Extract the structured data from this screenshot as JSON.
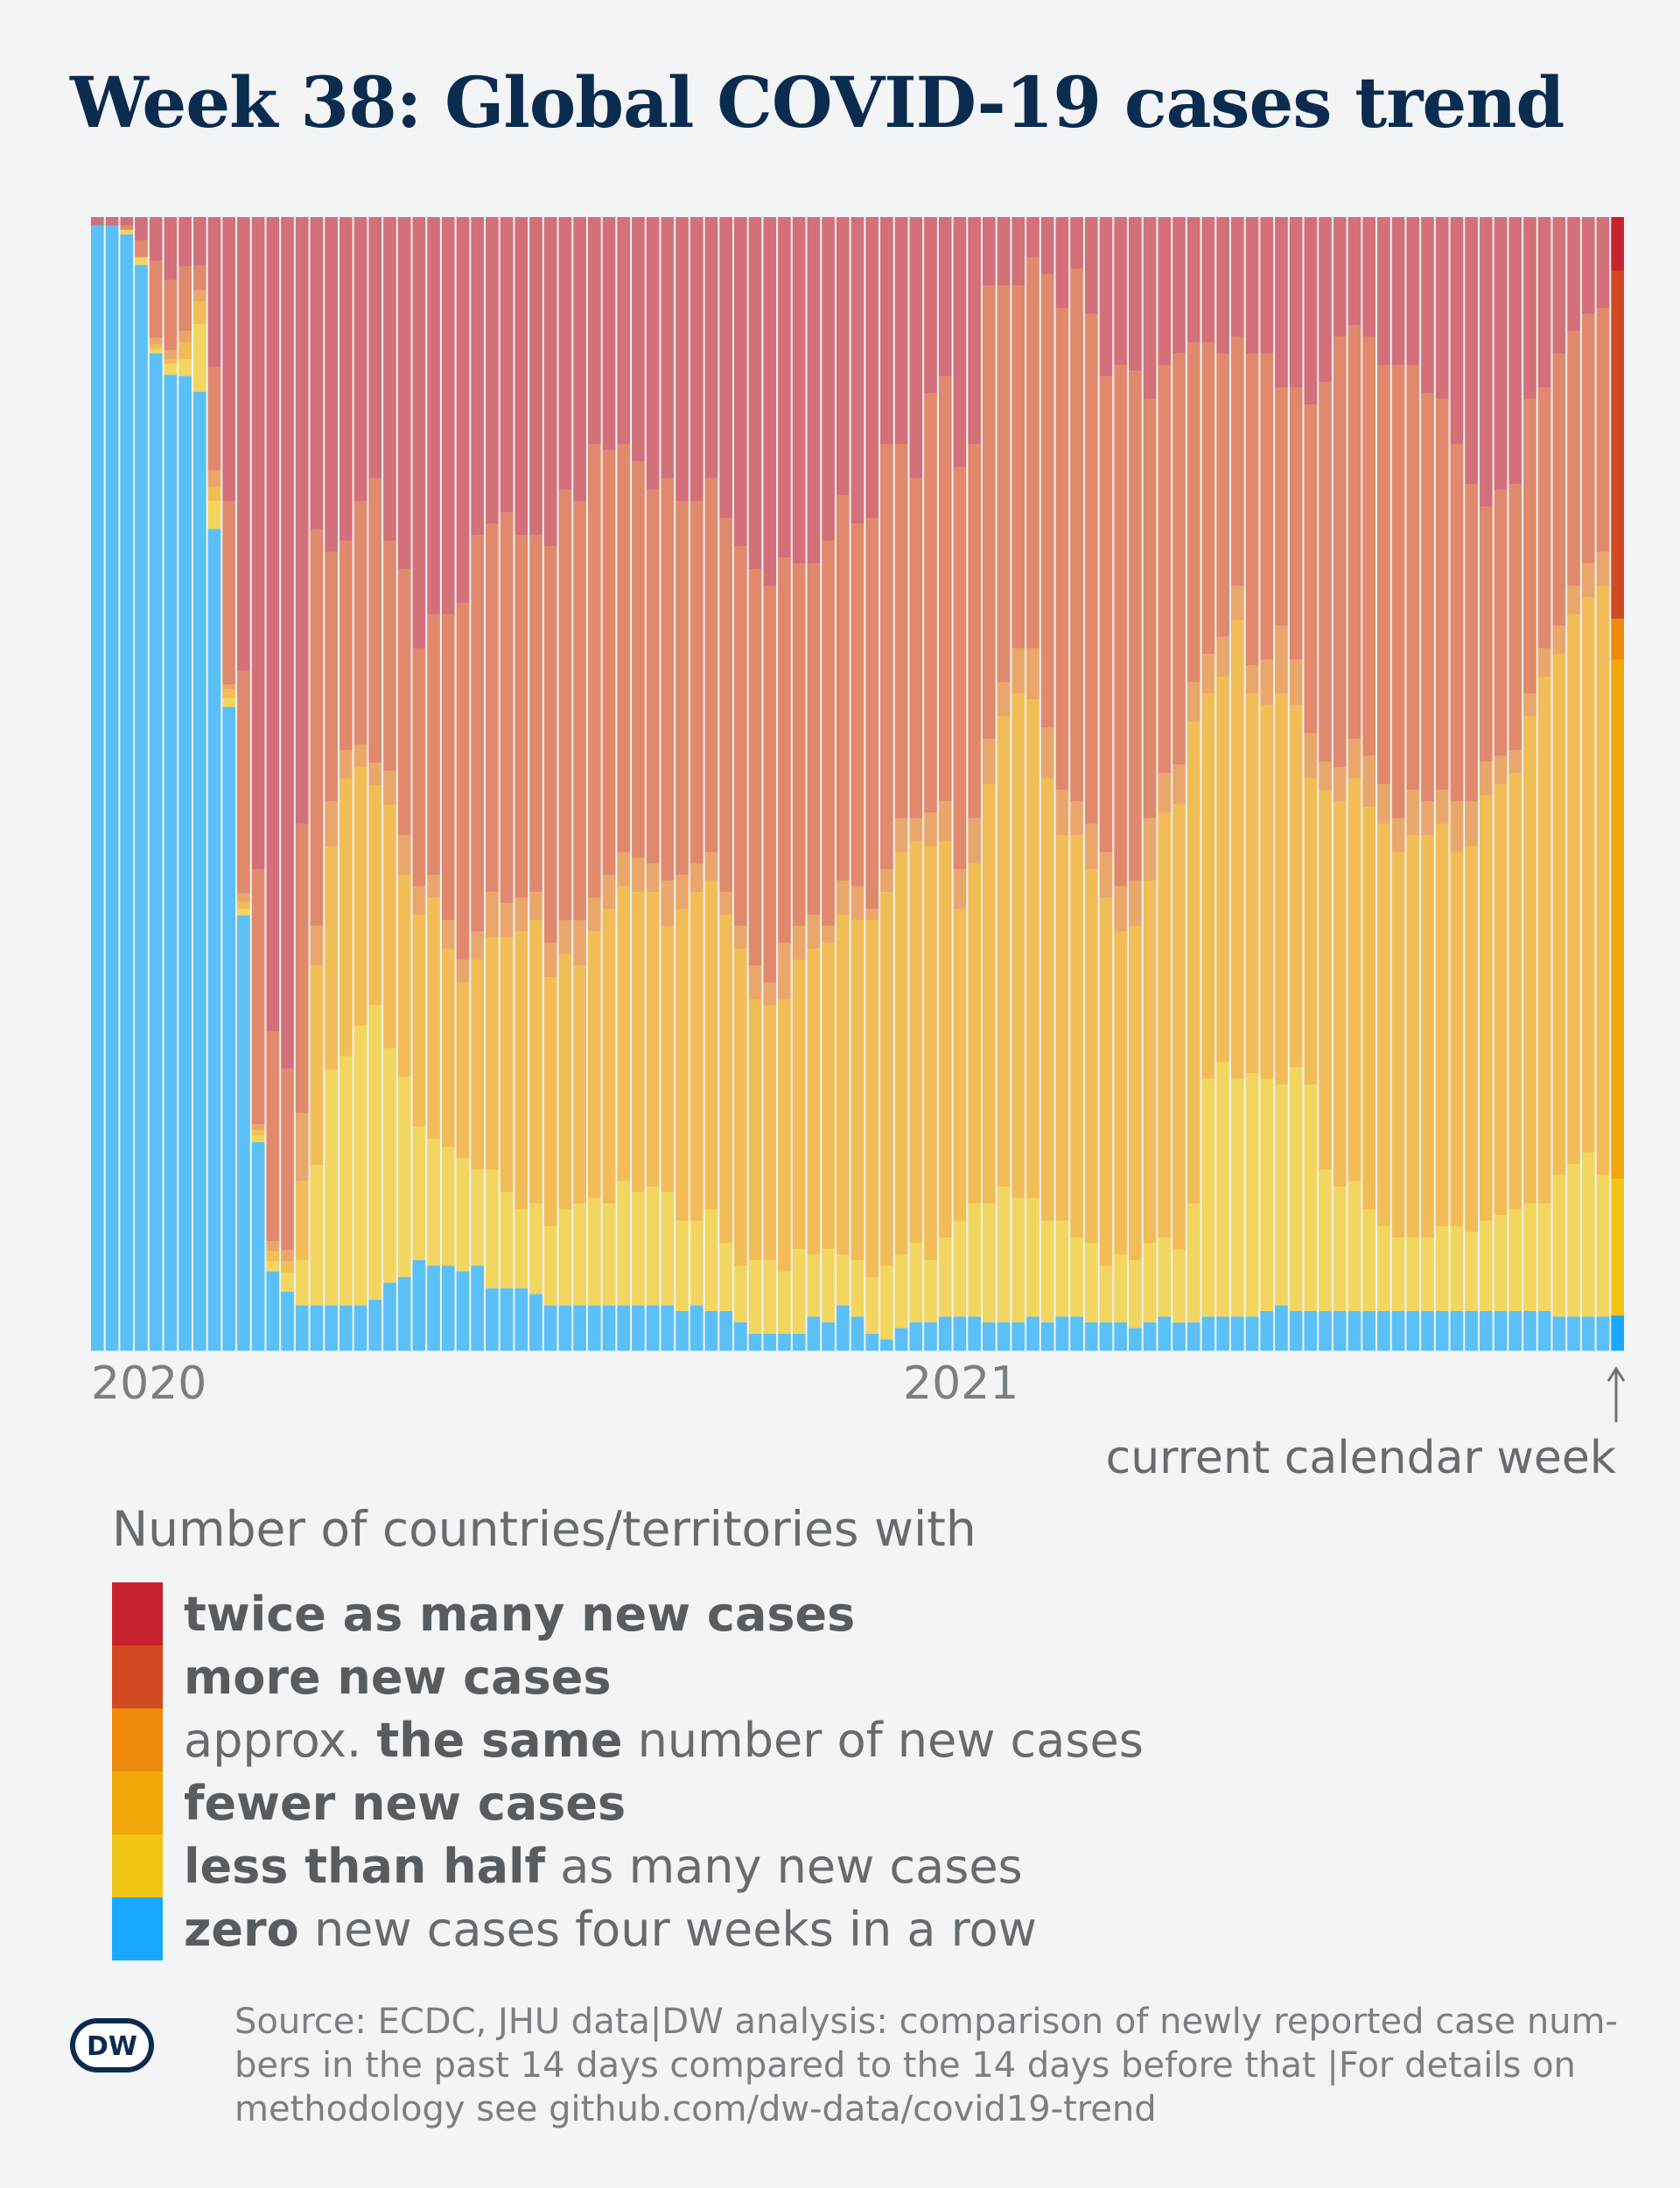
{
  "title": "Week 38: Global COVID-19 cases trend",
  "annotation": "current calendar week",
  "legend": {
    "heading": "Number of countries/territories with",
    "items": [
      {
        "key": "twice",
        "color": "#c7232e",
        "parts": [
          {
            "text": "twice as many new cases",
            "bold": true
          }
        ]
      },
      {
        "key": "more",
        "color": "#d24a22",
        "parts": [
          {
            "text": "more new cases",
            "bold": true
          }
        ]
      },
      {
        "key": "same",
        "color": "#ed8a0c",
        "parts": [
          {
            "text": "approx. ",
            "bold": false
          },
          {
            "text": "the same",
            "bold": true
          },
          {
            "text": " number of new cases",
            "bold": false
          }
        ]
      },
      {
        "key": "fewer",
        "color": "#f0a70a",
        "parts": [
          {
            "text": "fewer new cases",
            "bold": true
          }
        ]
      },
      {
        "key": "half",
        "color": "#f0c514",
        "parts": [
          {
            "text": "less than half",
            "bold": true
          },
          {
            "text": " as many new cases",
            "bold": false
          }
        ]
      },
      {
        "key": "zero",
        "color": "#1aa7ff",
        "parts": [
          {
            "text": "zero",
            "bold": true
          },
          {
            "text": " new cases four weeks in a row",
            "bold": false
          }
        ]
      }
    ]
  },
  "source": {
    "lines": [
      "Source: ECDC, JHU data|DW analysis: comparison of newly reported case num-",
      "bers in the past 14 days compared to the 14 days before that |For details on",
      "methodology see github.com/dw-data/covid19-trend"
    ]
  },
  "logo_text": "DW",
  "chart_data": {
    "type": "bar",
    "stacked": true,
    "normalized": true,
    "x_labels": [
      "2020",
      "2021"
    ],
    "series_order": [
      "zero",
      "half",
      "fewer",
      "same",
      "more",
      "twice"
    ],
    "historic_colors": {
      "zero": "#5bc0f8",
      "half": "#f2d660",
      "fewer": "#f2bd56",
      "same": "#eaa76c",
      "more": "#e1896c",
      "twice": "#d3707a"
    },
    "current_colors": {
      "zero": "#1aa7ff",
      "half": "#f0c514",
      "fewer": "#f0a70a",
      "same": "#ed8a0c",
      "more": "#d24a22",
      "twice": "#c7232e"
    },
    "weeks": [
      {
        "zero": 0.993,
        "half": 0,
        "fewer": 0,
        "same": 0,
        "more": 0,
        "twice": 0.007
      },
      {
        "zero": 0.993,
        "half": 0,
        "fewer": 0,
        "same": 0,
        "more": 0,
        "twice": 0.007
      },
      {
        "zero": 0.985,
        "half": 0.004,
        "fewer": 0,
        "same": 0,
        "more": 0.004,
        "twice": 0.007
      },
      {
        "zero": 0.958,
        "half": 0.007,
        "fewer": 0,
        "same": 0,
        "more": 0.015,
        "twice": 0.02
      },
      {
        "zero": 0.88,
        "half": 0.004,
        "fewer": 0.004,
        "same": 0.006,
        "more": 0.068,
        "twice": 0.038
      },
      {
        "zero": 0.861,
        "half": 0.01,
        "fewer": 0.004,
        "same": 0.008,
        "more": 0.062,
        "twice": 0.055
      },
      {
        "zero": 0.86,
        "half": 0.015,
        "fewer": 0.015,
        "same": 0.01,
        "more": 0.057,
        "twice": 0.043
      },
      {
        "zero": 0.846,
        "half": 0.06,
        "fewer": 0.02,
        "same": 0.01,
        "more": 0.022,
        "twice": 0.042
      },
      {
        "zero": 0.725,
        "half": 0.025,
        "fewer": 0.012,
        "same": 0.015,
        "more": 0.091,
        "twice": 0.132
      },
      {
        "zero": 0.568,
        "half": 0.008,
        "fewer": 0.008,
        "same": 0.004,
        "more": 0.162,
        "twice": 0.25
      },
      {
        "zero": 0.384,
        "half": 0.006,
        "fewer": 0.006,
        "same": 0.008,
        "more": 0.196,
        "twice": 0.4
      },
      {
        "zero": 0.184,
        "half": 0.006,
        "fewer": 0.005,
        "same": 0.005,
        "more": 0.225,
        "twice": 0.575
      },
      {
        "zero": 0.07,
        "half": 0.009,
        "fewer": 0.009,
        "same": 0.009,
        "more": 0.185,
        "twice": 0.718
      },
      {
        "zero": 0.052,
        "half": 0.017,
        "fewer": 0.01,
        "same": 0.01,
        "more": 0.16,
        "twice": 0.75
      },
      {
        "zero": 0.04,
        "half": 0.04,
        "fewer": 0.07,
        "same": 0.06,
        "more": 0.255,
        "twice": 0.535
      },
      {
        "zero": 0.04,
        "half": 0.124,
        "fewer": 0.176,
        "same": 0.035,
        "more": 0.35,
        "twice": 0.275
      },
      {
        "zero": 0.04,
        "half": 0.208,
        "fewer": 0.197,
        "same": 0.04,
        "more": 0.22,
        "twice": 0.295
      },
      {
        "zero": 0.04,
        "half": 0.22,
        "fewer": 0.245,
        "same": 0.025,
        "more": 0.185,
        "twice": 0.285
      },
      {
        "zero": 0.04,
        "half": 0.247,
        "fewer": 0.228,
        "same": 0.02,
        "more": 0.215,
        "twice": 0.25
      },
      {
        "zero": 0.045,
        "half": 0.26,
        "fewer": 0.194,
        "same": 0.02,
        "more": 0.251,
        "twice": 0.23
      },
      {
        "zero": 0.06,
        "half": 0.207,
        "fewer": 0.215,
        "same": 0.03,
        "more": 0.203,
        "twice": 0.285
      },
      {
        "zero": 0.065,
        "half": 0.177,
        "fewer": 0.178,
        "same": 0.035,
        "more": 0.235,
        "twice": 0.31
      },
      {
        "zero": 0.08,
        "half": 0.118,
        "fewer": 0.187,
        "same": 0.025,
        "more": 0.21,
        "twice": 0.38
      },
      {
        "zero": 0.075,
        "half": 0.112,
        "fewer": 0.213,
        "same": 0.02,
        "more": 0.23,
        "twice": 0.35
      },
      {
        "zero": 0.075,
        "half": 0.105,
        "fewer": 0.175,
        "same": 0.025,
        "more": 0.27,
        "twice": 0.35
      },
      {
        "zero": 0.07,
        "half": 0.1,
        "fewer": 0.155,
        "same": 0.02,
        "more": 0.315,
        "twice": 0.34
      },
      {
        "zero": 0.075,
        "half": 0.085,
        "fewer": 0.185,
        "same": 0.025,
        "more": 0.35,
        "twice": 0.28
      },
      {
        "zero": 0.055,
        "half": 0.105,
        "fewer": 0.205,
        "same": 0.04,
        "more": 0.325,
        "twice": 0.27
      },
      {
        "zero": 0.055,
        "half": 0.085,
        "fewer": 0.225,
        "same": 0.03,
        "more": 0.345,
        "twice": 0.26
      },
      {
        "zero": 0.055,
        "half": 0.07,
        "fewer": 0.245,
        "same": 0.03,
        "more": 0.32,
        "twice": 0.28
      },
      {
        "zero": 0.05,
        "half": 0.08,
        "fewer": 0.25,
        "same": 0.025,
        "more": 0.315,
        "twice": 0.28
      },
      {
        "zero": 0.04,
        "half": 0.07,
        "fewer": 0.22,
        "same": 0.03,
        "more": 0.35,
        "twice": 0.29
      },
      {
        "zero": 0.04,
        "half": 0.085,
        "fewer": 0.225,
        "same": 0.03,
        "more": 0.38,
        "twice": 0.24
      },
      {
        "zero": 0.04,
        "half": 0.09,
        "fewer": 0.21,
        "same": 0.04,
        "more": 0.37,
        "twice": 0.25
      },
      {
        "zero": 0.04,
        "half": 0.095,
        "fewer": 0.235,
        "same": 0.03,
        "more": 0.4,
        "twice": 0.2
      },
      {
        "zero": 0.04,
        "half": 0.09,
        "fewer": 0.26,
        "same": 0.03,
        "more": 0.375,
        "twice": 0.205
      },
      {
        "zero": 0.04,
        "half": 0.11,
        "fewer": 0.26,
        "same": 0.03,
        "more": 0.36,
        "twice": 0.2
      },
      {
        "zero": 0.04,
        "half": 0.1,
        "fewer": 0.265,
        "same": 0.03,
        "more": 0.35,
        "twice": 0.215
      },
      {
        "zero": 0.04,
        "half": 0.105,
        "fewer": 0.26,
        "same": 0.025,
        "more": 0.33,
        "twice": 0.24
      },
      {
        "zero": 0.04,
        "half": 0.1,
        "fewer": 0.235,
        "same": 0.04,
        "more": 0.355,
        "twice": 0.23
      },
      {
        "zero": 0.035,
        "half": 0.08,
        "fewer": 0.275,
        "same": 0.03,
        "more": 0.33,
        "twice": 0.25
      },
      {
        "zero": 0.04,
        "half": 0.075,
        "fewer": 0.29,
        "same": 0.025,
        "more": 0.32,
        "twice": 0.25
      },
      {
        "zero": 0.035,
        "half": 0.09,
        "fewer": 0.29,
        "same": 0.025,
        "more": 0.33,
        "twice": 0.23
      },
      {
        "zero": 0.035,
        "half": 0.06,
        "fewer": 0.29,
        "same": 0.02,
        "more": 0.33,
        "twice": 0.265
      },
      {
        "zero": 0.025,
        "half": 0.05,
        "fewer": 0.28,
        "same": 0.02,
        "more": 0.335,
        "twice": 0.29
      },
      {
        "zero": 0.015,
        "half": 0.065,
        "fewer": 0.23,
        "same": 0.03,
        "more": 0.35,
        "twice": 0.31
      },
      {
        "zero": 0.015,
        "half": 0.065,
        "fewer": 0.225,
        "same": 0.02,
        "more": 0.35,
        "twice": 0.325
      },
      {
        "zero": 0.015,
        "half": 0.055,
        "fewer": 0.24,
        "same": 0.05,
        "more": 0.34,
        "twice": 0.3
      },
      {
        "zero": 0.015,
        "half": 0.075,
        "fewer": 0.255,
        "same": 0.03,
        "more": 0.32,
        "twice": 0.305
      },
      {
        "zero": 0.03,
        "half": 0.055,
        "fewer": 0.27,
        "same": 0.03,
        "more": 0.31,
        "twice": 0.305
      },
      {
        "zero": 0.025,
        "half": 0.065,
        "fewer": 0.27,
        "same": 0.015,
        "more": 0.34,
        "twice": 0.285
      },
      {
        "zero": 0.04,
        "half": 0.045,
        "fewer": 0.3,
        "same": 0.03,
        "more": 0.34,
        "twice": 0.245
      },
      {
        "zero": 0.03,
        "half": 0.05,
        "fewer": 0.3,
        "same": 0.03,
        "more": 0.32,
        "twice": 0.27
      },
      {
        "zero": 0.015,
        "half": 0.05,
        "fewer": 0.315,
        "same": 0.01,
        "more": 0.345,
        "twice": 0.265
      },
      {
        "zero": 0.01,
        "half": 0.065,
        "fewer": 0.33,
        "same": 0.02,
        "more": 0.375,
        "twice": 0.2
      },
      {
        "zero": 0.02,
        "half": 0.065,
        "fewer": 0.355,
        "same": 0.03,
        "more": 0.33,
        "twice": 0.2
      },
      {
        "zero": 0.025,
        "half": 0.07,
        "fewer": 0.355,
        "same": 0.02,
        "more": 0.3,
        "twice": 0.23
      },
      {
        "zero": 0.025,
        "half": 0.055,
        "fewer": 0.365,
        "same": 0.03,
        "more": 0.37,
        "twice": 0.155
      },
      {
        "zero": 0.03,
        "half": 0.07,
        "fewer": 0.35,
        "same": 0.035,
        "more": 0.375,
        "twice": 0.14
      },
      {
        "zero": 0.03,
        "half": 0.085,
        "fewer": 0.275,
        "same": 0.035,
        "more": 0.355,
        "twice": 0.22
      },
      {
        "zero": 0.03,
        "half": 0.1,
        "fewer": 0.3,
        "same": 0.04,
        "more": 0.33,
        "twice": 0.2
      },
      {
        "zero": 0.025,
        "half": 0.105,
        "fewer": 0.37,
        "same": 0.04,
        "more": 0.4,
        "twice": 0.06
      },
      {
        "zero": 0.025,
        "half": 0.12,
        "fewer": 0.415,
        "same": 0.03,
        "more": 0.35,
        "twice": 0.06
      },
      {
        "zero": 0.025,
        "half": 0.11,
        "fewer": 0.445,
        "same": 0.04,
        "more": 0.32,
        "twice": 0.06
      },
      {
        "zero": 0.03,
        "half": 0.105,
        "fewer": 0.44,
        "same": 0.045,
        "more": 0.345,
        "twice": 0.035
      },
      {
        "zero": 0.025,
        "half": 0.09,
        "fewer": 0.39,
        "same": 0.045,
        "more": 0.4,
        "twice": 0.05
      },
      {
        "zero": 0.03,
        "half": 0.085,
        "fewer": 0.34,
        "same": 0.04,
        "more": 0.425,
        "twice": 0.08
      },
      {
        "zero": 0.03,
        "half": 0.07,
        "fewer": 0.355,
        "same": 0.03,
        "more": 0.47,
        "twice": 0.045
      },
      {
        "zero": 0.025,
        "half": 0.07,
        "fewer": 0.33,
        "same": 0.04,
        "more": 0.45,
        "twice": 0.085
      },
      {
        "zero": 0.025,
        "half": 0.05,
        "fewer": 0.325,
        "same": 0.04,
        "more": 0.42,
        "twice": 0.14
      },
      {
        "zero": 0.025,
        "half": 0.06,
        "fewer": 0.285,
        "same": 0.04,
        "more": 0.46,
        "twice": 0.13
      },
      {
        "zero": 0.02,
        "half": 0.06,
        "fewer": 0.295,
        "same": 0.04,
        "more": 0.45,
        "twice": 0.135
      },
      {
        "zero": 0.025,
        "half": 0.07,
        "fewer": 0.32,
        "same": 0.055,
        "more": 0.37,
        "twice": 0.16
      },
      {
        "zero": 0.03,
        "half": 0.07,
        "fewer": 0.375,
        "same": 0.035,
        "more": 0.36,
        "twice": 0.13
      },
      {
        "zero": 0.025,
        "half": 0.065,
        "fewer": 0.395,
        "same": 0.035,
        "more": 0.365,
        "twice": 0.12
      },
      {
        "zero": 0.025,
        "half": 0.105,
        "fewer": 0.425,
        "same": 0.035,
        "more": 0.3,
        "twice": 0.11
      },
      {
        "zero": 0.03,
        "half": 0.21,
        "fewer": 0.34,
        "same": 0.035,
        "more": 0.275,
        "twice": 0.11
      },
      {
        "zero": 0.03,
        "half": 0.225,
        "fewer": 0.34,
        "same": 0.035,
        "more": 0.25,
        "twice": 0.12
      },
      {
        "zero": 0.03,
        "half": 0.21,
        "fewer": 0.405,
        "same": 0.03,
        "more": 0.22,
        "twice": 0.105
      },
      {
        "zero": 0.03,
        "half": 0.215,
        "fewer": 0.335,
        "same": 0.025,
        "more": 0.275,
        "twice": 0.12
      },
      {
        "zero": 0.035,
        "half": 0.205,
        "fewer": 0.33,
        "same": 0.04,
        "more": 0.27,
        "twice": 0.12
      },
      {
        "zero": 0.04,
        "half": 0.195,
        "fewer": 0.345,
        "same": 0.06,
        "more": 0.21,
        "twice": 0.15
      },
      {
        "zero": 0.035,
        "half": 0.215,
        "fewer": 0.32,
        "same": 0.04,
        "more": 0.24,
        "twice": 0.15
      },
      {
        "zero": 0.035,
        "half": 0.2,
        "fewer": 0.27,
        "same": 0.04,
        "more": 0.29,
        "twice": 0.165
      },
      {
        "zero": 0.035,
        "half": 0.125,
        "fewer": 0.335,
        "same": 0.025,
        "more": 0.335,
        "twice": 0.145
      },
      {
        "zero": 0.035,
        "half": 0.11,
        "fewer": 0.34,
        "same": 0.03,
        "more": 0.38,
        "twice": 0.105
      },
      {
        "zero": 0.035,
        "half": 0.115,
        "fewer": 0.355,
        "same": 0.035,
        "more": 0.365,
        "twice": 0.095
      },
      {
        "zero": 0.035,
        "half": 0.09,
        "fewer": 0.355,
        "same": 0.045,
        "more": 0.37,
        "twice": 0.105
      },
      {
        "zero": 0.035,
        "half": 0.075,
        "fewer": 0.355,
        "same": 0.035,
        "more": 0.37,
        "twice": 0.13
      },
      {
        "zero": 0.035,
        "half": 0.065,
        "fewer": 0.34,
        "same": 0.03,
        "more": 0.4,
        "twice": 0.13
      },
      {
        "zero": 0.035,
        "half": 0.065,
        "fewer": 0.355,
        "same": 0.04,
        "more": 0.375,
        "twice": 0.13
      },
      {
        "zero": 0.035,
        "half": 0.065,
        "fewer": 0.355,
        "same": 0.03,
        "more": 0.36,
        "twice": 0.155
      },
      {
        "zero": 0.035,
        "half": 0.075,
        "fewer": 0.355,
        "same": 0.03,
        "more": 0.345,
        "twice": 0.16
      },
      {
        "zero": 0.035,
        "half": 0.075,
        "fewer": 0.33,
        "same": 0.045,
        "more": 0.315,
        "twice": 0.2
      },
      {
        "zero": 0.035,
        "half": 0.07,
        "fewer": 0.34,
        "same": 0.04,
        "more": 0.28,
        "twice": 0.235
      },
      {
        "zero": 0.035,
        "half": 0.08,
        "fewer": 0.375,
        "same": 0.03,
        "more": 0.225,
        "twice": 0.255
      },
      {
        "zero": 0.035,
        "half": 0.085,
        "fewer": 0.38,
        "same": 0.025,
        "more": 0.235,
        "twice": 0.24
      },
      {
        "zero": 0.035,
        "half": 0.09,
        "fewer": 0.385,
        "same": 0.02,
        "more": 0.235,
        "twice": 0.235
      },
      {
        "zero": 0.035,
        "half": 0.095,
        "fewer": 0.43,
        "same": 0.02,
        "more": 0.26,
        "twice": 0.16
      },
      {
        "zero": 0.035,
        "half": 0.095,
        "fewer": 0.465,
        "same": 0.025,
        "more": 0.23,
        "twice": 0.15
      },
      {
        "zero": 0.03,
        "half": 0.125,
        "fewer": 0.46,
        "same": 0.025,
        "more": 0.24,
        "twice": 0.12
      },
      {
        "zero": 0.03,
        "half": 0.135,
        "fewer": 0.485,
        "same": 0.025,
        "more": 0.225,
        "twice": 0.1
      },
      {
        "zero": 0.03,
        "half": 0.145,
        "fewer": 0.49,
        "same": 0.03,
        "more": 0.22,
        "twice": 0.085
      },
      {
        "zero": 0.03,
        "half": 0.125,
        "fewer": 0.52,
        "same": 0.03,
        "more": 0.215,
        "twice": 0.08
      },
      {
        "zero": 0.031,
        "half": 0.121,
        "fewer": 0.458,
        "same": 0.036,
        "more": 0.307,
        "twice": 0.047
      }
    ]
  }
}
